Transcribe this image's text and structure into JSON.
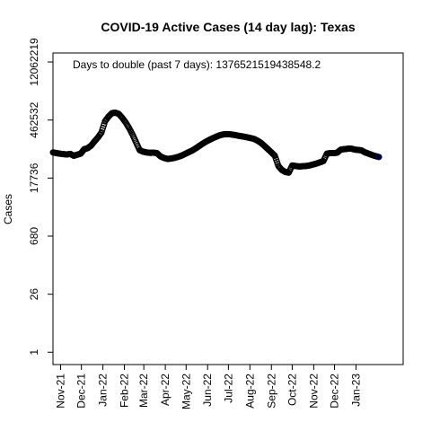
{
  "chart_data": {
    "type": "scatter",
    "title": "COVID-19 Active Cases (14 day lag): Texas",
    "xlabel": "",
    "ylabel": "Cases",
    "annotation": "Days to double (past 7 days): 1376521519438548.2",
    "y_scale": "log",
    "y_ticks": [
      1,
      26,
      680,
      17736,
      462532,
      12062219
    ],
    "x_tick_labels": [
      "Nov-21",
      "Dec-21",
      "Jan-22",
      "Feb-22",
      "Mar-22",
      "Apr-22",
      "May-22",
      "Jun-22",
      "Jul-22",
      "Aug-22",
      "Sep-22",
      "Oct-22",
      "Nov-22",
      "Dec-22",
      "Jan-23"
    ],
    "xlim": [
      "2021-10-21",
      "2023-03-10"
    ],
    "ylim": [
      0.5,
      20000000
    ],
    "marker": "open-circle",
    "marker_color": "#000000",
    "last_point_color": "#00008b",
    "series": [
      {
        "x": [
          "2021-10-21",
          "2021-10-26",
          "2021-10-31",
          "2021-11-05",
          "2021-11-10",
          "2021-11-15",
          "2021-11-20",
          "2021-11-25",
          "2021-11-30",
          "2021-12-05",
          "2021-12-10",
          "2021-12-15",
          "2021-12-20",
          "2021-12-25",
          "2021-12-30",
          "2022-01-04",
          "2022-01-09",
          "2022-01-14",
          "2022-01-19",
          "2022-01-24",
          "2022-01-29",
          "2022-02-03",
          "2022-02-08",
          "2022-02-13",
          "2022-02-18",
          "2022-02-23",
          "2022-02-28",
          "2022-03-05",
          "2022-03-10",
          "2022-03-15",
          "2022-03-20",
          "2022-03-25",
          "2022-03-30",
          "2022-04-04",
          "2022-04-09",
          "2022-04-14",
          "2022-04-19",
          "2022-04-24",
          "2022-04-29",
          "2022-05-04",
          "2022-05-09",
          "2022-05-14",
          "2022-05-19",
          "2022-05-24",
          "2022-05-29",
          "2022-06-03",
          "2022-06-08",
          "2022-06-13",
          "2022-06-18",
          "2022-06-23",
          "2022-06-28",
          "2022-07-03",
          "2022-07-08",
          "2022-07-13",
          "2022-07-18",
          "2022-07-23",
          "2022-07-28",
          "2022-08-02",
          "2022-08-07",
          "2022-08-12",
          "2022-08-17",
          "2022-08-22",
          "2022-08-27",
          "2022-09-01",
          "2022-09-06",
          "2022-09-11",
          "2022-09-16",
          "2022-09-21",
          "2022-09-26",
          "2022-10-01",
          "2022-10-06",
          "2022-10-11",
          "2022-10-16",
          "2022-10-21",
          "2022-10-26",
          "2022-10-31",
          "2022-11-05",
          "2022-11-10",
          "2022-11-15",
          "2022-11-20",
          "2022-11-25",
          "2022-11-30",
          "2022-12-05",
          "2022-12-10",
          "2022-12-15",
          "2022-12-20",
          "2022-12-25",
          "2022-12-30",
          "2023-01-04",
          "2023-01-09",
          "2023-01-14",
          "2023-01-19",
          "2023-01-24",
          "2023-01-29",
          "2023-02-03"
        ],
        "y": [
          75000,
          72000,
          70000,
          68000,
          67000,
          69000,
          62000,
          66000,
          70000,
          90000,
          95000,
          110000,
          140000,
          175000,
          230000,
          430000,
          560000,
          680000,
          700000,
          650000,
          520000,
          400000,
          290000,
          200000,
          130000,
          85000,
          78000,
          75000,
          73000,
          74000,
          72000,
          60000,
          55000,
          52000,
          53000,
          55000,
          58000,
          62000,
          68000,
          75000,
          82000,
          92000,
          105000,
          120000,
          135000,
          150000,
          165000,
          180000,
          195000,
          205000,
          210000,
          208000,
          202000,
          195000,
          188000,
          182000,
          175000,
          168000,
          160000,
          145000,
          128000,
          108000,
          90000,
          75000,
          62000,
          35000,
          28000,
          25000,
          24000,
          36000,
          35000,
          34000,
          34500,
          35000,
          36000,
          38000,
          40000,
          43000,
          46000,
          70000,
          72000,
          72000,
          74000,
          88000,
          90000,
          92000,
          93000,
          88000,
          86000,
          84000,
          75000,
          70000,
          65000,
          61000,
          58000
        ]
      }
    ]
  }
}
